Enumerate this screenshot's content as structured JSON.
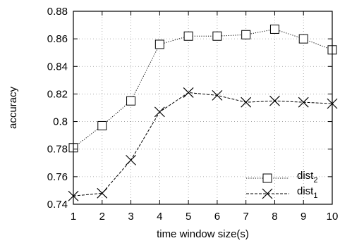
{
  "chart_data": {
    "type": "line",
    "title": "",
    "xlabel": "time window size(s)",
    "ylabel": "accuracy",
    "xlim": [
      1,
      10
    ],
    "ylim": [
      0.74,
      0.88
    ],
    "xticks": [
      1,
      2,
      3,
      4,
      5,
      6,
      7,
      8,
      9,
      10
    ],
    "yticks": [
      0.74,
      0.76,
      0.78,
      0.8,
      0.82,
      0.84,
      0.86,
      0.88
    ],
    "ytick_labels": [
      "0.74",
      "0.76",
      "0.78",
      "0.8",
      "0.82",
      "0.84",
      "0.86",
      "0.88"
    ],
    "grid": true,
    "legend_position": "bottom-right",
    "x": [
      1,
      2,
      3,
      4,
      5,
      6,
      7,
      8,
      9,
      10
    ],
    "series": [
      {
        "name": "dist",
        "subscript": "2",
        "marker": "square",
        "line_style": "dotted",
        "values": [
          0.781,
          0.797,
          0.815,
          0.856,
          0.862,
          0.862,
          0.863,
          0.867,
          0.86,
          0.852
        ]
      },
      {
        "name": "dist",
        "subscript": "1",
        "marker": "cross",
        "line_style": "dashed",
        "values": [
          0.746,
          0.748,
          0.772,
          0.807,
          0.821,
          0.819,
          0.814,
          0.815,
          0.814,
          0.813
        ]
      }
    ]
  }
}
